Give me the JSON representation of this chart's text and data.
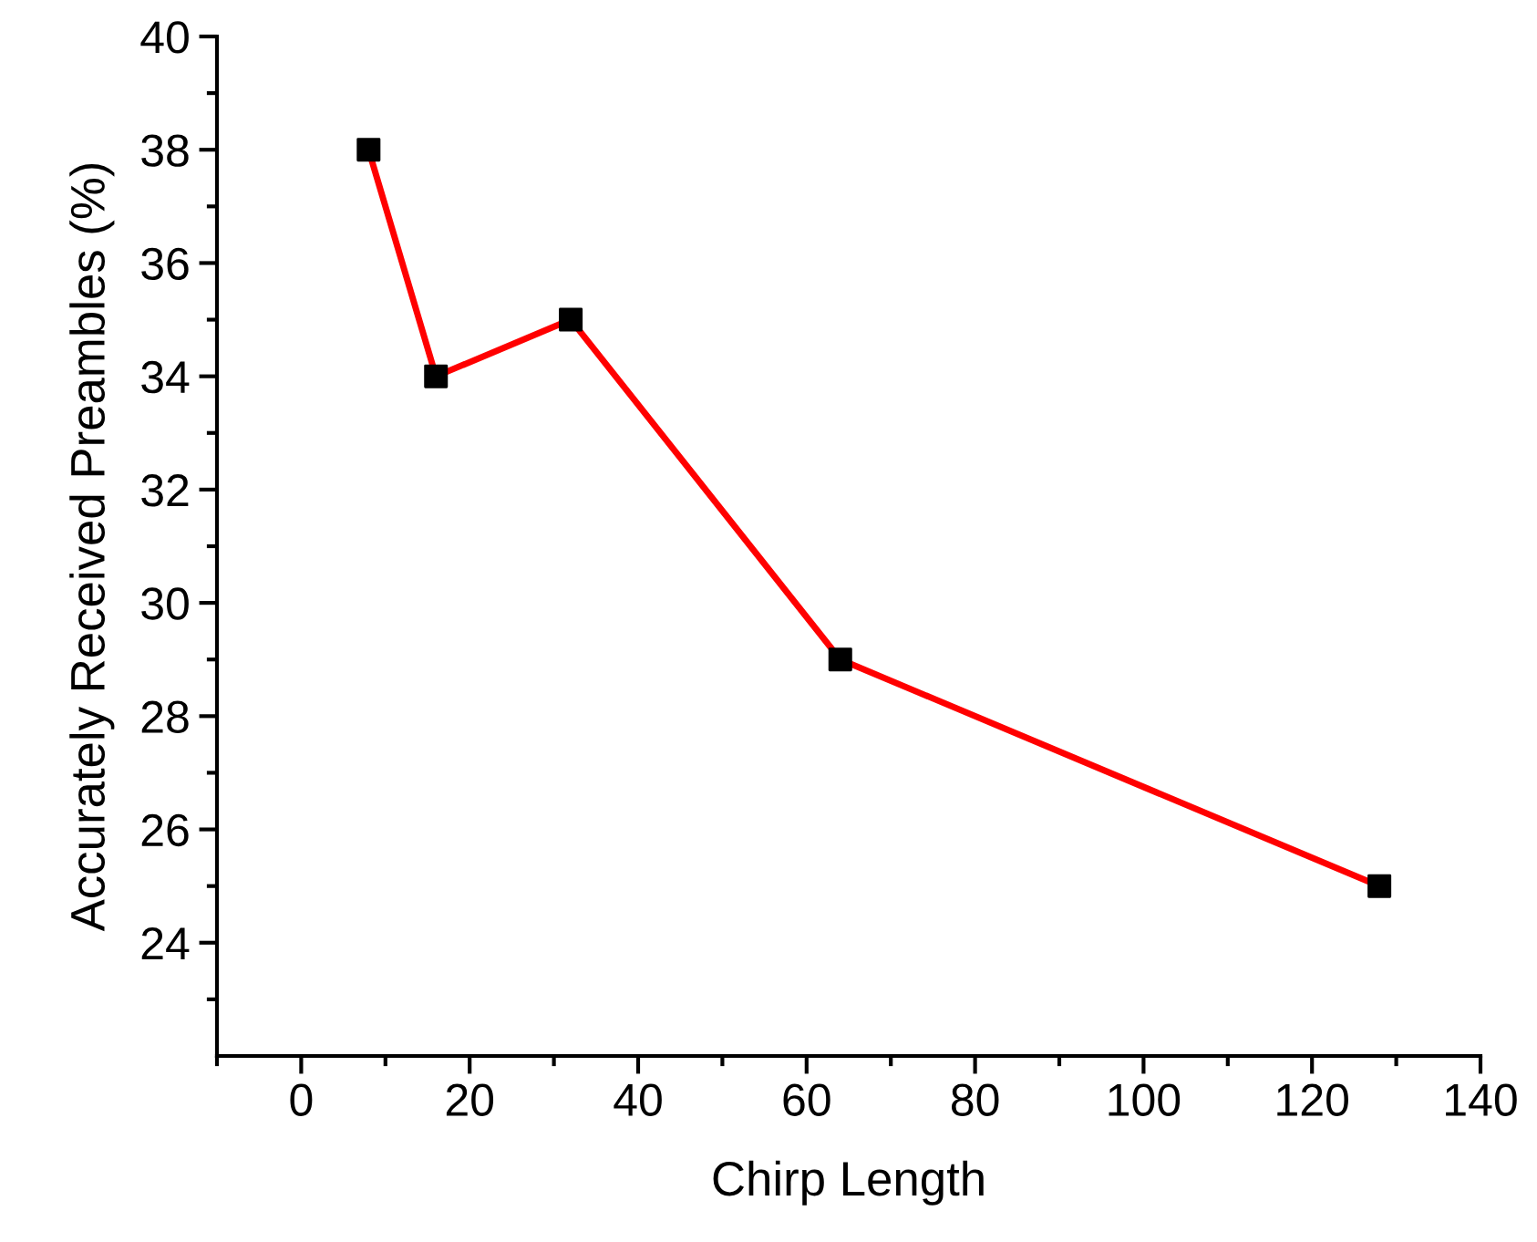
{
  "chart_data": {
    "type": "line",
    "xlabel": "Chirp Length",
    "ylabel": "Accurately Received Preambles (%)",
    "x": [
      8,
      16,
      32,
      64,
      128
    ],
    "series": [
      {
        "color": "#ff0000",
        "colors": [
          "#000000",
          "#000000",
          "#000000",
          "#000000",
          "#000000"
        ],
        "values": [
          38,
          34,
          35,
          29,
          25
        ]
      }
    ],
    "xlim": [
      -10,
      140
    ],
    "ylim": [
      22,
      40
    ],
    "xticks": [
      0,
      20,
      40,
      60,
      80,
      100,
      120,
      140,
      {
        "value": -10,
        "label": null
      },
      {
        "value": 10,
        "label": null
      },
      {
        "value": 30,
        "label": null
      },
      {
        "value": 50,
        "label": null
      },
      {
        "value": 70,
        "label": null
      },
      {
        "value": 90,
        "label": null
      },
      {
        "value": 110,
        "label": null
      },
      {
        "value": 130,
        "label": null
      }
    ],
    "yticks": [
      24,
      26,
      28,
      30,
      32,
      34,
      36,
      38,
      40,
      {
        "value": 23,
        "label": null
      },
      {
        "value": 25,
        "label": null
      },
      {
        "value": 27,
        "label": null
      },
      {
        "value": 29,
        "label": null
      },
      {
        "value": 31,
        "label": null
      },
      {
        "value": 33,
        "label": null
      },
      {
        "value": 35,
        "label": null
      },
      {
        "value": 37,
        "label": null
      },
      {
        "value": 39,
        "label": null
      }
    ],
    "marker": "square",
    "line_style": "solid",
    "grid": false,
    "legend": false
  }
}
